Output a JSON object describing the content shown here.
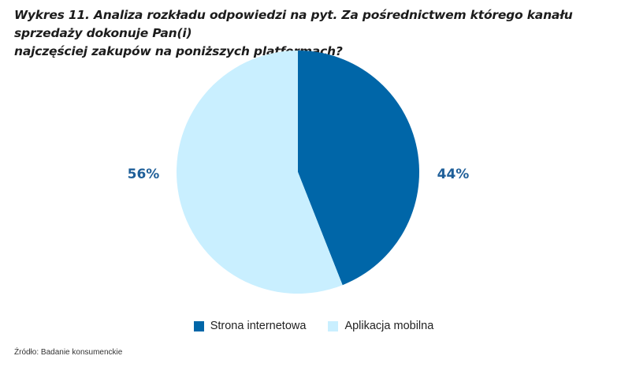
{
  "title": {
    "line1": "Wykres 11. Analiza rozkładu odpowiedzi na pyt. Za pośrednictwem którego kanału sprzedaży dokonuje Pan(i)",
    "line2": "najczęściej zakupów na poniższych platformach?"
  },
  "chart_data": {
    "type": "pie",
    "title": "Wykres 11. Analiza rozkładu odpowiedzi na pyt. Za pośrednictwem którego kanału sprzedaży dokonuje Pan(i) najczęściej zakupów na poniższych platformach?",
    "slices": [
      {
        "name": "Strona internetowa",
        "value": 44,
        "label": "44%",
        "color": "#0066a8"
      },
      {
        "name": "Aplikacja mobilna",
        "value": 56,
        "label": "56%",
        "color": "#c9efff"
      }
    ],
    "legend_placement": "bottom"
  },
  "legend": {
    "items": [
      {
        "label": "Strona internetowa",
        "color": "#0066a8"
      },
      {
        "label": "Aplikacja mobilna",
        "color": "#c9efff"
      }
    ]
  },
  "source": "Źródło: Badanie konsumenckie"
}
